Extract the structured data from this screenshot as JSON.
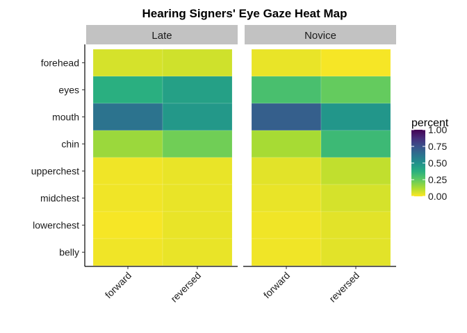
{
  "chart_data": {
    "type": "heatmap",
    "title": "Hearing Signers' Eye Gaze Heat Map",
    "facets": [
      "Late",
      "Novice"
    ],
    "x_categories": [
      "forward",
      "reversed"
    ],
    "y_categories": [
      "forehead",
      "eyes",
      "mouth",
      "chin",
      "upperchest",
      "midchest",
      "lowerchest",
      "belly"
    ],
    "values": {
      "Late": {
        "forward": [
          0.06,
          0.38,
          0.62,
          0.15,
          0.02,
          0.02,
          0.01,
          0.02
        ],
        "reversed": [
          0.07,
          0.44,
          0.47,
          0.22,
          0.03,
          0.03,
          0.03,
          0.03
        ]
      },
      "Novice": {
        "forward": [
          0.03,
          0.3,
          0.7,
          0.13,
          0.04,
          0.03,
          0.02,
          0.02
        ],
        "reversed": [
          0.01,
          0.24,
          0.48,
          0.33,
          0.09,
          0.06,
          0.04,
          0.04
        ]
      }
    },
    "legend": {
      "title": "percent",
      "ticks": [
        "1.00",
        "0.75",
        "0.50",
        "0.25",
        "0.00"
      ],
      "tick_values": [
        1.0,
        0.75,
        0.5,
        0.25,
        0.0
      ],
      "range": [
        0,
        1
      ],
      "placement": "right",
      "colormap": "viridis (reversed)"
    },
    "colors": {
      "strip_background": "#c2c2c2",
      "axis_line": "#000000"
    }
  }
}
